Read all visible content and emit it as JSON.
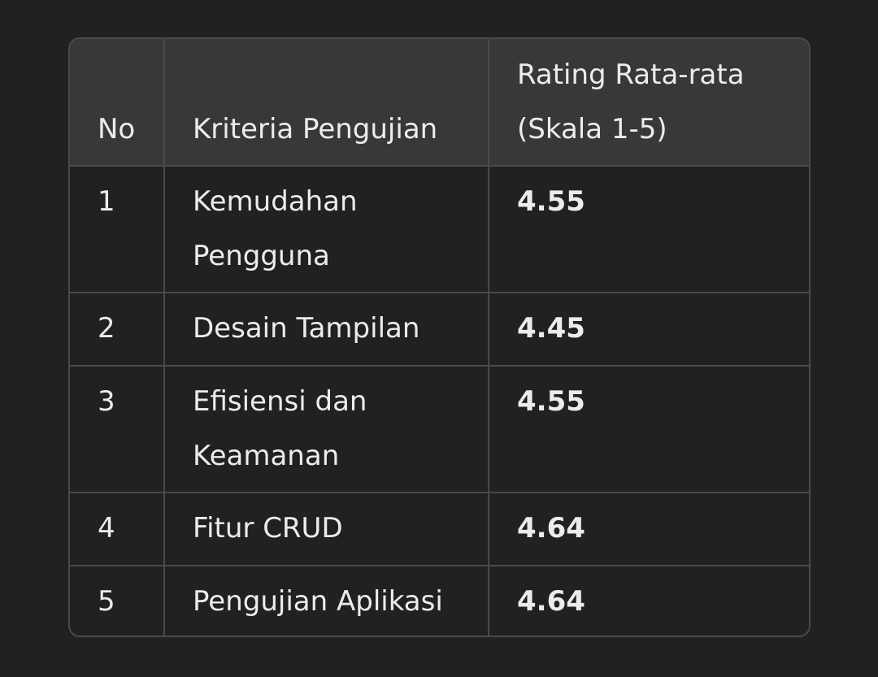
{
  "table": {
    "headers": [
      "No",
      "Kriteria Pengujian",
      "Rating Rata-rata (Skala 1-5)"
    ],
    "rows": [
      {
        "no": "1",
        "criterion": "Kemudahan Pengguna",
        "rating": "4.55"
      },
      {
        "no": "2",
        "criterion": "Desain Tampilan",
        "rating": "4.45"
      },
      {
        "no": "3",
        "criterion": "Efisiensi dan Keamanan",
        "rating": "4.55"
      },
      {
        "no": "4",
        "criterion": "Fitur CRUD",
        "rating": "4.64"
      },
      {
        "no": "5",
        "criterion": "Pengujian Aplikasi",
        "rating": "4.64"
      }
    ]
  }
}
